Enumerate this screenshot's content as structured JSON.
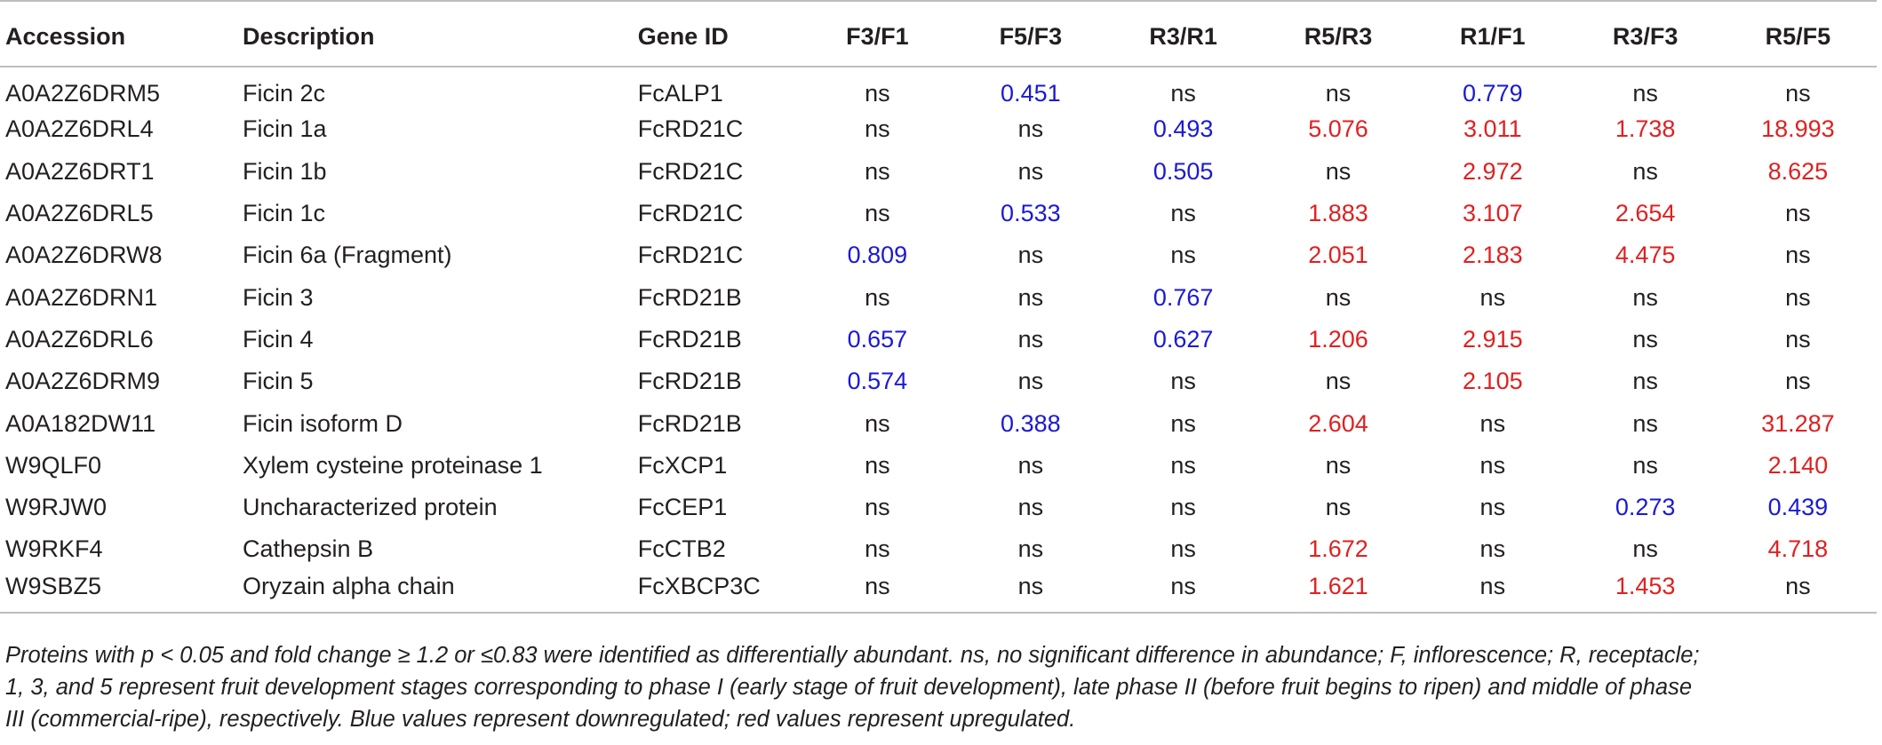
{
  "table": {
    "headers": [
      "Accession",
      "Description",
      "Gene ID",
      "F3/F1",
      "F5/F3",
      "R3/R1",
      "R5/R3",
      "R1/F1",
      "R3/F3",
      "R5/F5"
    ],
    "rows": [
      [
        "A0A2Z6DRM5",
        "Ficin 2c",
        "FcALP1",
        "ns",
        "0.451",
        "ns",
        "ns",
        "0.779",
        "ns",
        "ns"
      ],
      [
        "A0A2Z6DRL4",
        "Ficin 1a",
        "FcRD21C",
        "ns",
        "ns",
        "0.493",
        "5.076",
        "3.011",
        "1.738",
        "18.993"
      ],
      [
        "A0A2Z6DRT1",
        "Ficin 1b",
        "FcRD21C",
        "ns",
        "ns",
        "0.505",
        "ns",
        "2.972",
        "ns",
        "8.625"
      ],
      [
        "A0A2Z6DRL5",
        "Ficin 1c",
        "FcRD21C",
        "ns",
        "0.533",
        "ns",
        "1.883",
        "3.107",
        "2.654",
        "ns"
      ],
      [
        "A0A2Z6DRW8",
        "Ficin 6a (Fragment)",
        "FcRD21C",
        "0.809",
        "ns",
        "ns",
        "2.051",
        "2.183",
        "4.475",
        "ns"
      ],
      [
        "A0A2Z6DRN1",
        "Ficin 3",
        "FcRD21B",
        "ns",
        "ns",
        "0.767",
        "ns",
        "ns",
        "ns",
        "ns"
      ],
      [
        "A0A2Z6DRL6",
        "Ficin 4",
        "FcRD21B",
        "0.657",
        "ns",
        "0.627",
        "1.206",
        "2.915",
        "ns",
        "ns"
      ],
      [
        "A0A2Z6DRM9",
        "Ficin 5",
        "FcRD21B",
        "0.574",
        "ns",
        "ns",
        "ns",
        "2.105",
        "ns",
        "ns"
      ],
      [
        "A0A182DW11",
        "Ficin isoform D",
        "FcRD21B",
        "ns",
        "0.388",
        "ns",
        "2.604",
        "ns",
        "ns",
        "31.287"
      ],
      [
        "W9QLF0",
        "Xylem cysteine proteinase 1",
        "FcXCP1",
        "ns",
        "ns",
        "ns",
        "ns",
        "ns",
        "ns",
        "2.140"
      ],
      [
        "W9RJW0",
        "Uncharacterized protein",
        "FcCEP1",
        "ns",
        "ns",
        "ns",
        "ns",
        "ns",
        "0.273",
        "0.439"
      ],
      [
        "W9RKF4",
        "Cathepsin B",
        "FcCTB2",
        "ns",
        "ns",
        "ns",
        "1.672",
        "ns",
        "ns",
        "4.718"
      ],
      [
        "W9SBZ5",
        "Oryzain alpha chain",
        "FcXBCP3C",
        "ns",
        "ns",
        "ns",
        "1.621",
        "ns",
        "1.453",
        "ns"
      ]
    ]
  },
  "footnote": {
    "line1": "Proteins with p < 0.05 and fold change ≥ 1.2 or ≤0.83 were identified as differentially abundant. ns, no significant difference in abundance; F, inflorescence; R, receptacle;",
    "line2": "1, 3, and 5 represent fruit development stages corresponding to phase I (early stage of fruit development), late phase II (before fruit begins to ripen) and middle of phase",
    "line3": "III (commercial-ripe), respectively. Blue values represent downregulated; red values represent upregulated."
  },
  "colors": {
    "downregulated": "#1a1ad4",
    "upregulated": "#e02020",
    "text": "#231f20",
    "rule": "#bdbdbd"
  }
}
